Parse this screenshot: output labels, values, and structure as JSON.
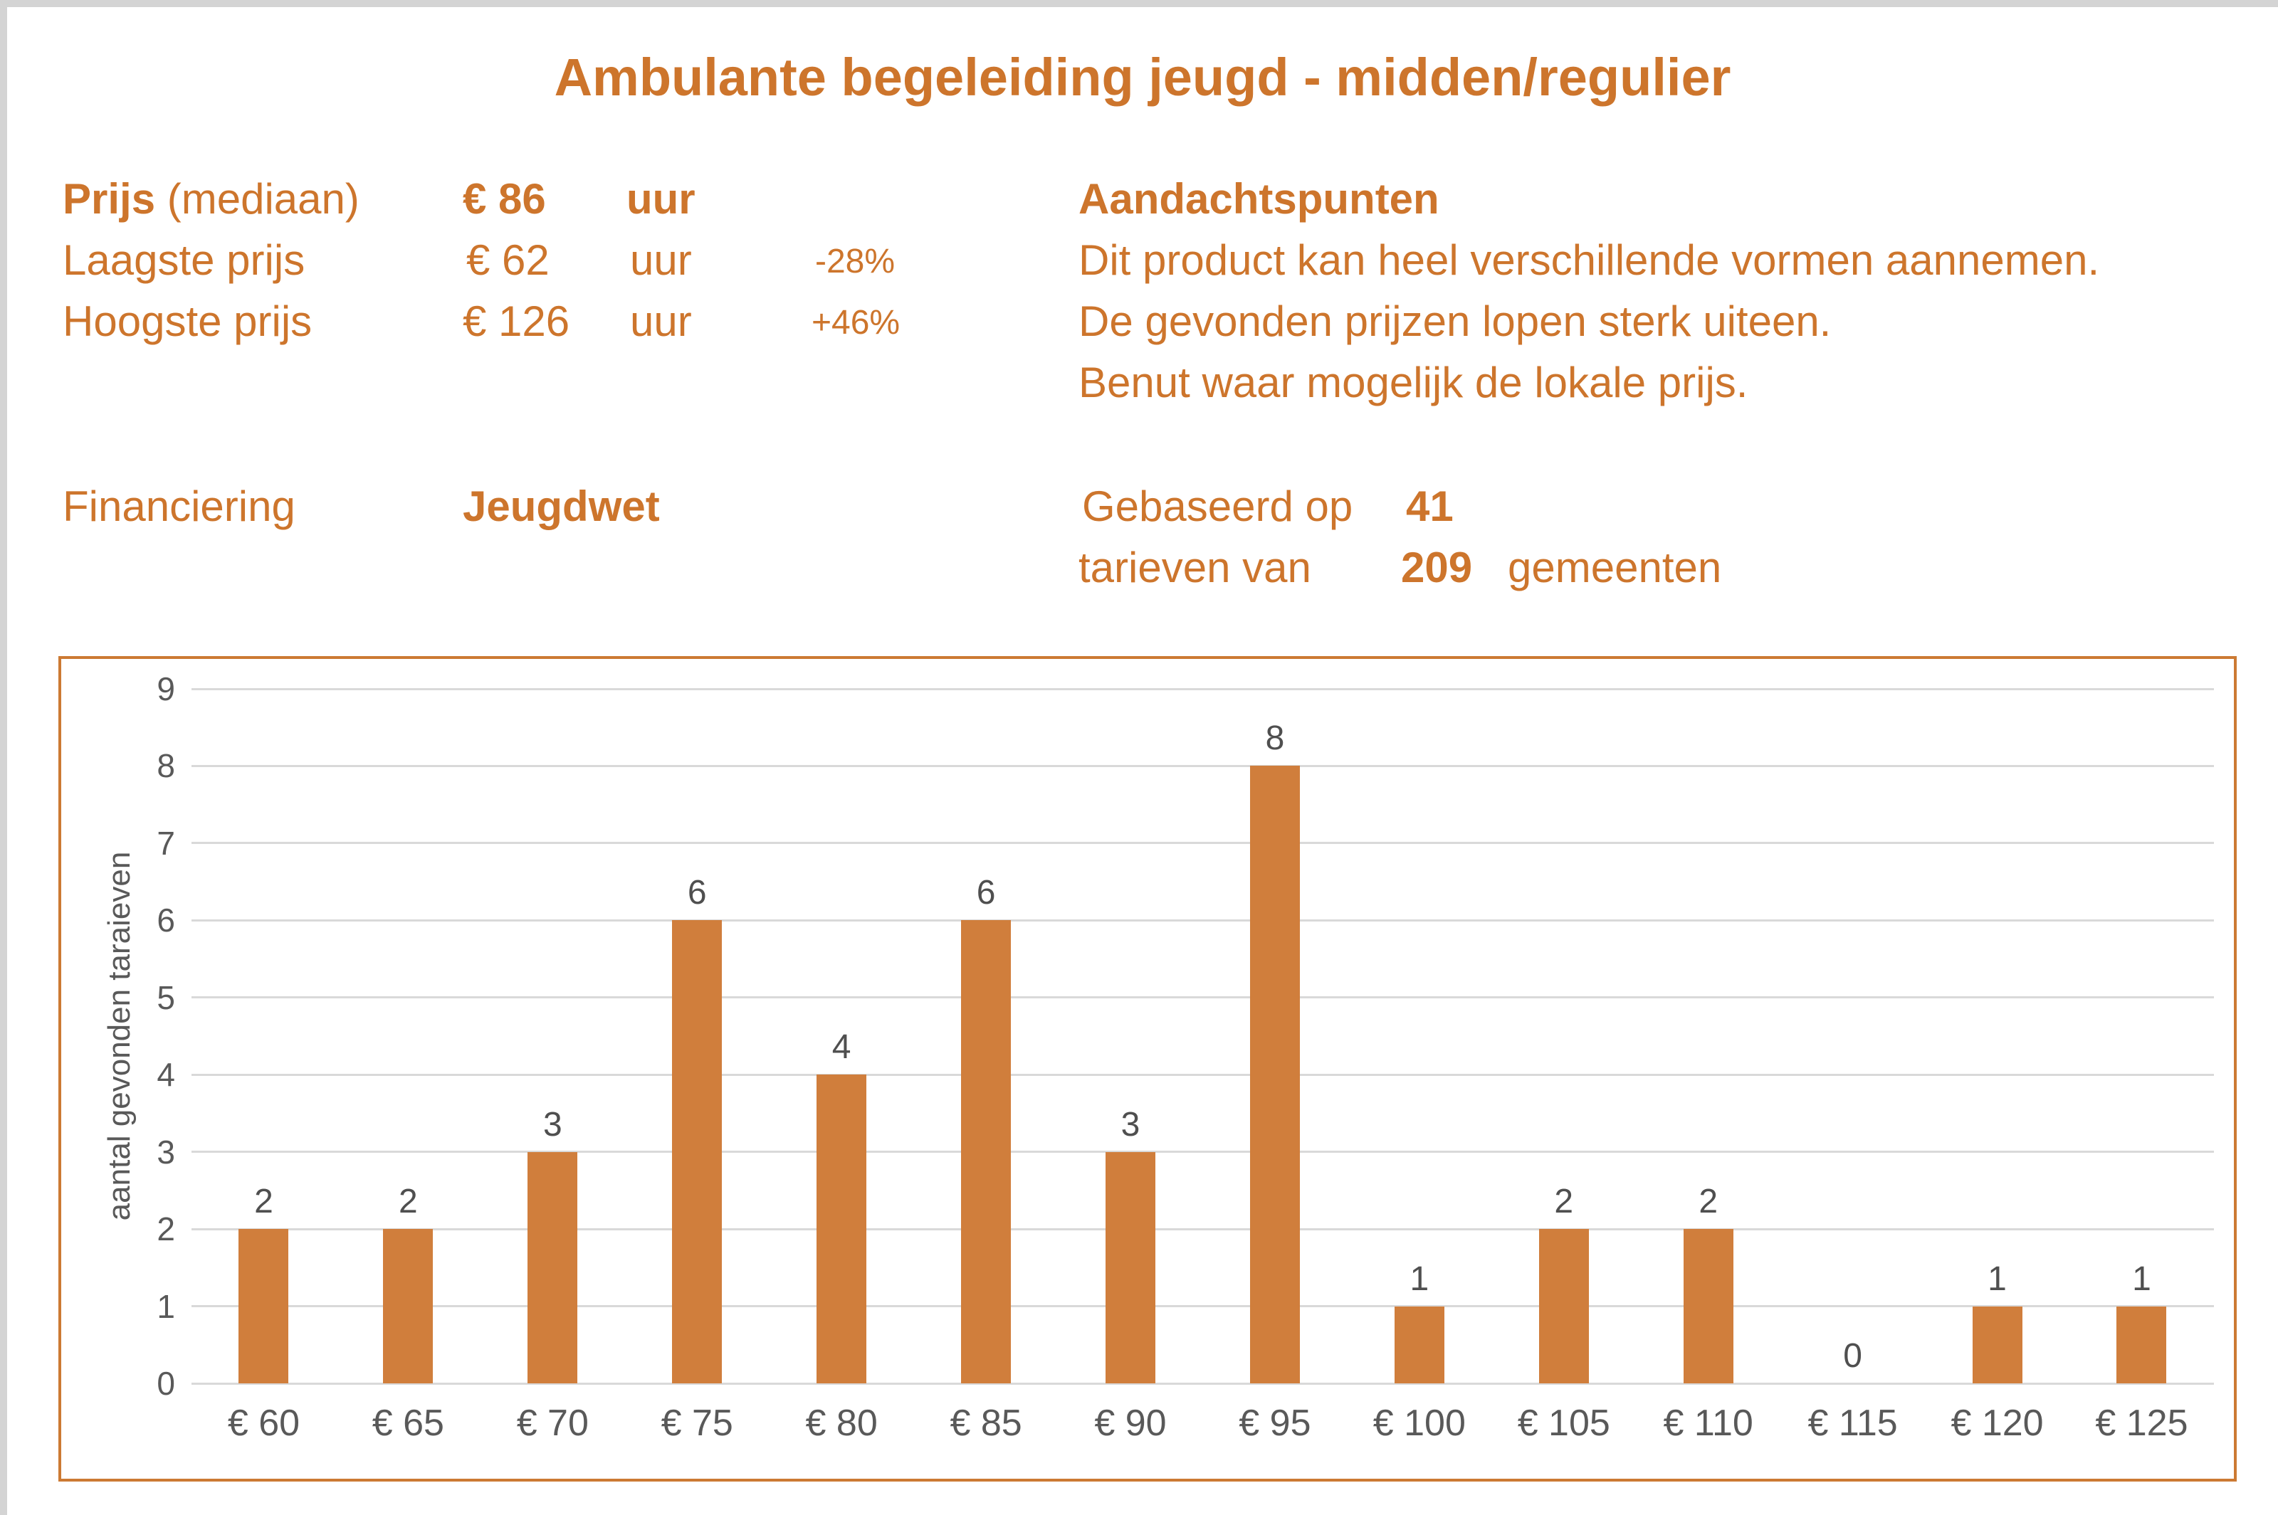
{
  "page": {
    "title": "Ambulante begeleiding jeugd - midden/regulier"
  },
  "stats": {
    "rows": [
      {
        "label_bold": "Prijs",
        "label_normal": " (mediaan)",
        "value": "€ 86",
        "unit": "uur",
        "delta": ""
      },
      {
        "label": "Laagste prijs",
        "value": "€ 62",
        "unit": "uur",
        "delta": "-28%"
      },
      {
        "label": "Hoogste prijs",
        "value": "€ 126",
        "unit": "uur",
        "delta": "+46%"
      }
    ],
    "financing": {
      "label": "Financiering",
      "value": "Jeugdwet"
    },
    "based_on": {
      "line1_prefix": "Gebaseerd op",
      "line1_count": "41",
      "line2_prefix": "tarieven van",
      "line2_count": "209",
      "line2_suffix": "gemeenten"
    }
  },
  "notes": {
    "title": "Aandachtspunten",
    "lines": [
      "Dit product kan heel verschillende vormen aannemen.",
      "De gevonden prijzen lopen sterk uiteen.",
      "Benut waar mogelijk de lokale prijs."
    ]
  },
  "chart_data": {
    "type": "bar",
    "categories": [
      "€ 60",
      "€ 65",
      "€ 70",
      "€ 75",
      "€ 80",
      "€ 85",
      "€ 90",
      "€ 95",
      "€ 100",
      "€ 105",
      "€ 110",
      "€ 115",
      "€ 120",
      "€ 125"
    ],
    "values": [
      2,
      2,
      3,
      6,
      4,
      6,
      3,
      8,
      1,
      2,
      2,
      0,
      1,
      1
    ],
    "title": "",
    "xlabel": "",
    "ylabel": "aantal gevonden taraieven",
    "ylim": [
      0,
      9
    ],
    "yticks": [
      0,
      1,
      2,
      3,
      4,
      5,
      6,
      7,
      8,
      9
    ],
    "grid": true,
    "legend": "none",
    "bar_color": "#d07e3c",
    "grid_color": "#d9d9d9",
    "axis_text_color": "#595959",
    "value_label_color": "#4f4f4f",
    "frame_color": "#cc7a33",
    "accent_color": "#cd752c"
  }
}
